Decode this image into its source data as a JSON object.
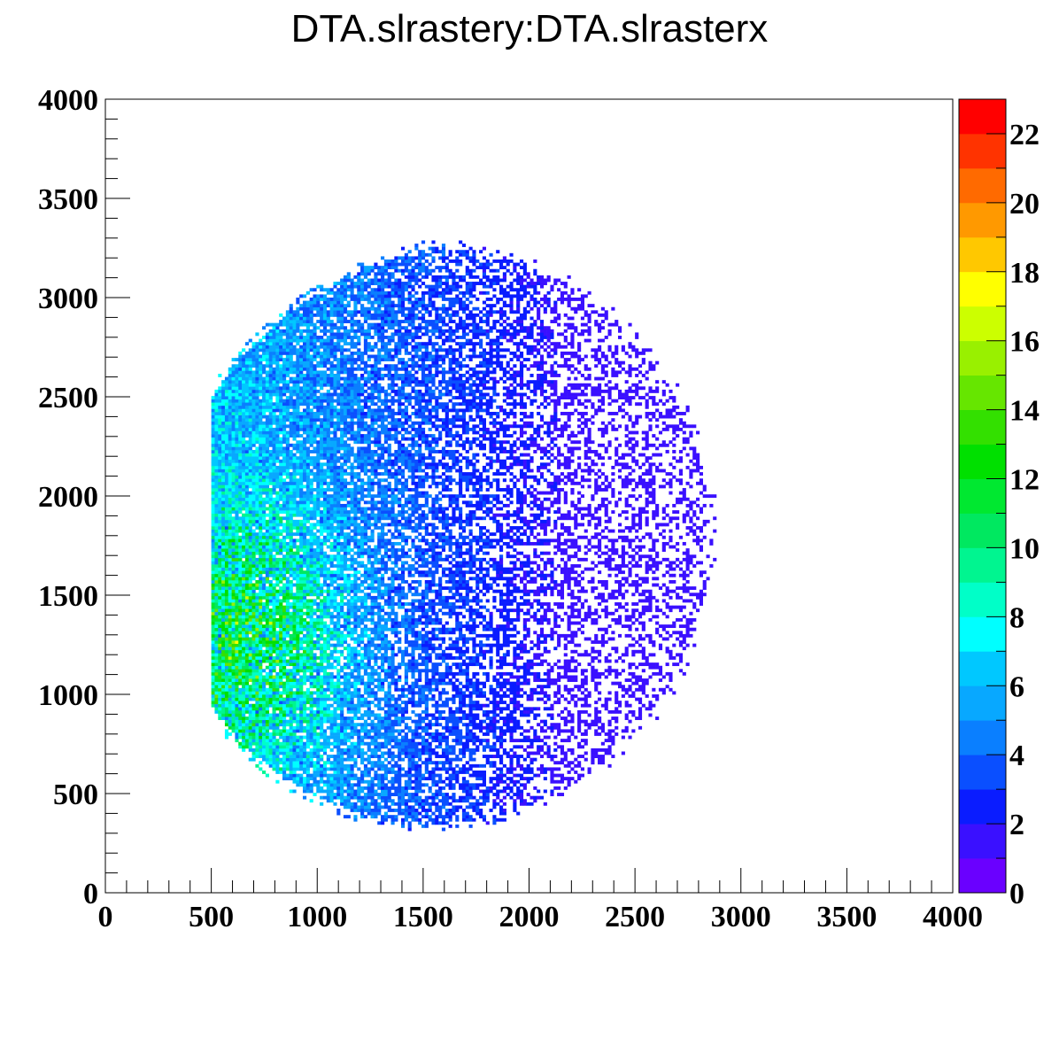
{
  "chart_data": {
    "type": "heatmap",
    "title": "DTA.slrastery:DTA.slrasterx",
    "xlabel": "",
    "ylabel": "",
    "xlim": [
      0,
      4000
    ],
    "ylim": [
      0,
      4000
    ],
    "x_ticks": [
      "0",
      "500",
      "1000",
      "1500",
      "2000",
      "2500",
      "3000",
      "3500",
      "4000"
    ],
    "y_ticks": [
      "0",
      "500",
      "1000",
      "1500",
      "2000",
      "2500",
      "3000",
      "3500",
      "4000"
    ],
    "colorbar": {
      "range": [
        0,
        23
      ],
      "ticks": [
        "0",
        "2",
        "4",
        "6",
        "8",
        "10",
        "12",
        "14",
        "16",
        "18",
        "20",
        "22"
      ],
      "palette": [
        "#6a00ff",
        "#3a10ff",
        "#0a1cff",
        "#0a4fff",
        "#0a7fff",
        "#08a8ff",
        "#00c8ff",
        "#00ffff",
        "#00ffc8",
        "#00f590",
        "#00e860",
        "#00e830",
        "#00e000",
        "#33e000",
        "#66e600",
        "#99f000",
        "#ccff00",
        "#ffff00",
        "#ffc800",
        "#ff9900",
        "#ff6a00",
        "#ff3300",
        "#ff0000"
      ]
    },
    "distribution": {
      "description_values": "approximately circular blob of counts",
      "center": [
        1550,
        1800
      ],
      "radius_x": 1300,
      "radius_y": 1450,
      "left_edge_x": 530,
      "right_edge_x": 2950,
      "bottom_y": 300,
      "top_y": 3300,
      "peak_counts_near": [
        700,
        1300
      ],
      "max_count": 23
    },
    "grid": false,
    "legend": "none"
  }
}
